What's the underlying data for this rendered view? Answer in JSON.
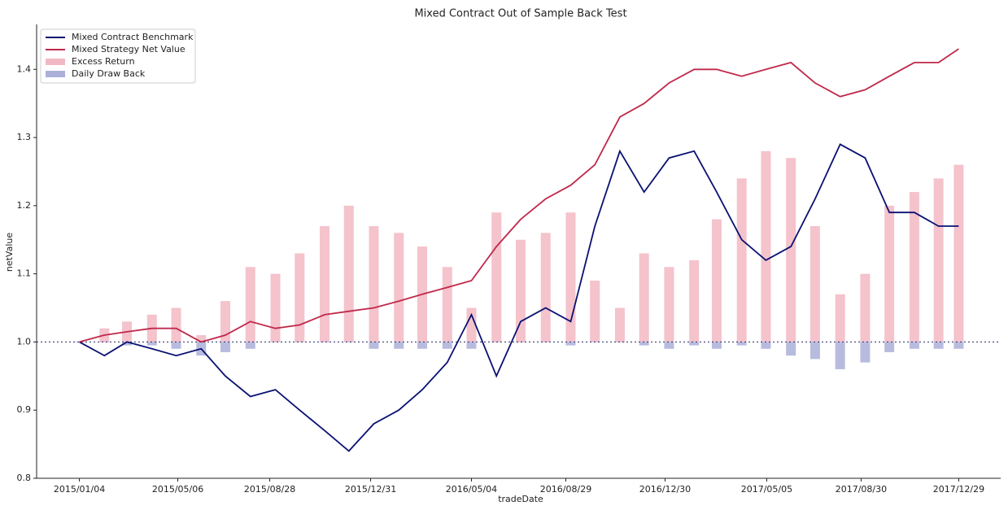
{
  "chart_data": {
    "type": "line",
    "title": "Mixed Contract Out of Sample Back Test",
    "xlabel": "tradeDate",
    "ylabel": "netValue",
    "x": [
      "2015/01/04",
      "2015/02/04",
      "2015/03/04",
      "2015/04/04",
      "2015/05/04",
      "2015/06/04",
      "2015/07/04",
      "2015/08/04",
      "2015/09/04",
      "2015/10/04",
      "2015/11/04",
      "2015/12/04",
      "2016/01/04",
      "2016/02/04",
      "2016/03/04",
      "2016/04/04",
      "2016/05/04",
      "2016/06/04",
      "2016/07/04",
      "2016/08/04",
      "2016/09/04",
      "2016/10/04",
      "2016/11/04",
      "2016/12/04",
      "2017/01/04",
      "2017/02/04",
      "2017/03/04",
      "2017/04/04",
      "2017/05/04",
      "2017/06/04",
      "2017/07/04",
      "2017/08/04",
      "2017/09/04",
      "2017/10/04",
      "2017/11/04",
      "2017/12/04",
      "2017/12/29"
    ],
    "series": [
      {
        "name": "Mixed Contract Benchmark",
        "kind": "line",
        "color": "#0a1172",
        "values": [
          1.0,
          0.98,
          1.0,
          0.99,
          0.98,
          0.99,
          0.95,
          0.92,
          0.93,
          0.9,
          0.87,
          0.84,
          0.88,
          0.9,
          0.93,
          0.97,
          1.04,
          0.95,
          1.03,
          1.05,
          1.03,
          1.17,
          1.28,
          1.22,
          1.27,
          1.28,
          1.22,
          1.15,
          1.12,
          1.14,
          1.21,
          1.29,
          1.27,
          1.19,
          1.19,
          1.17,
          1.17
        ]
      },
      {
        "name": "Mixed Strategy Net Value",
        "kind": "line",
        "color": "#c0284a",
        "values": [
          1.0,
          1.01,
          1.015,
          1.02,
          1.02,
          1.0,
          1.01,
          1.03,
          1.02,
          1.025,
          1.04,
          1.045,
          1.05,
          1.06,
          1.07,
          1.08,
          1.09,
          1.14,
          1.18,
          1.21,
          1.23,
          1.26,
          1.33,
          1.35,
          1.38,
          1.4,
          1.4,
          1.39,
          1.4,
          1.41,
          1.38,
          1.36,
          1.37,
          1.39,
          1.41,
          1.41,
          1.43
        ]
      },
      {
        "name": "Excess Return",
        "kind": "bar",
        "color": "#f2b8c3",
        "values": [
          1.0,
          1.02,
          1.03,
          1.04,
          1.05,
          1.01,
          1.06,
          1.11,
          1.1,
          1.13,
          1.17,
          1.2,
          1.17,
          1.16,
          1.14,
          1.11,
          1.05,
          1.19,
          1.15,
          1.16,
          1.19,
          1.09,
          1.05,
          1.13,
          1.11,
          1.12,
          1.18,
          1.24,
          1.28,
          1.27,
          1.17,
          1.07,
          1.1,
          1.2,
          1.22,
          1.24,
          1.26
        ]
      },
      {
        "name": "Daily Draw Back",
        "kind": "bar",
        "color": "#aab0d8",
        "values": [
          1.0,
          1.0,
          0.995,
          0.995,
          0.99,
          0.98,
          0.985,
          0.99,
          1.0,
          1.0,
          1.0,
          1.0,
          0.99,
          0.99,
          0.99,
          0.99,
          0.99,
          1.0,
          1.0,
          1.0,
          0.995,
          1.0,
          1.0,
          0.995,
          0.99,
          0.995,
          0.99,
          0.995,
          0.99,
          0.98,
          0.975,
          0.96,
          0.97,
          0.985,
          0.99,
          0.99,
          0.99
        ]
      }
    ],
    "baseline": 1,
    "xlim": [
      "2014/11/12",
      "2018/02/19"
    ],
    "xticks": [
      "2015/01/04",
      "2015/05/06",
      "2015/08/28",
      "2015/12/31",
      "2016/05/04",
      "2016/08/29",
      "2016/12/30",
      "2017/05/05",
      "2017/08/30",
      "2017/12/29"
    ],
    "ylim": [
      0.8,
      1.46
    ],
    "yticks": [
      0.8,
      0.9,
      {
        "value": 1,
        "label": "1.0"
      },
      1.1,
      1.2,
      1.3,
      1.4
    ],
    "legend": "upper-left"
  }
}
